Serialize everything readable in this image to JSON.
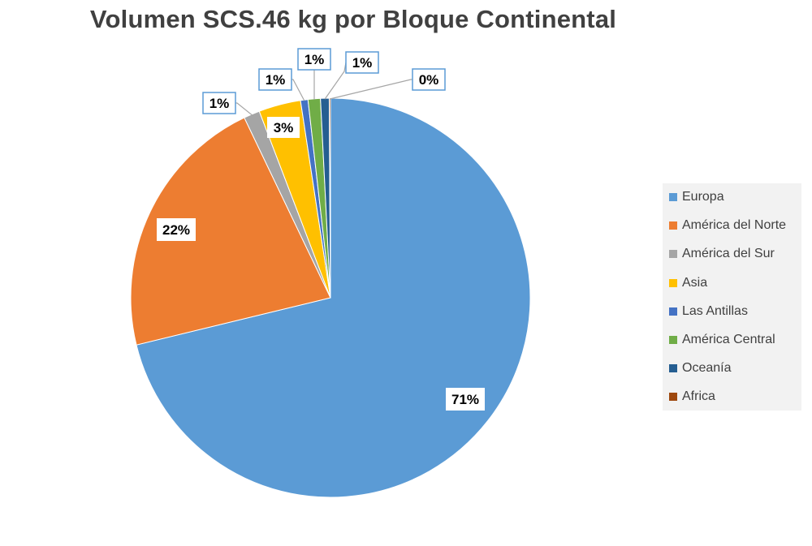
{
  "chart_data": {
    "type": "pie",
    "title": "Volumen SCS.46 kg por Bloque Continental",
    "legend_position": "right",
    "categories": [
      "Europa",
      "América del Norte",
      "América del Sur",
      "Asia",
      "Las Antillas",
      "América Central",
      "Oceanía",
      "Africa"
    ],
    "values": [
      71.2,
      21.7,
      1.3,
      3.4,
      0.6,
      1.0,
      0.7,
      0.1
    ],
    "labels": [
      "71%",
      "22%",
      "1%",
      "3%",
      "1%",
      "1%",
      "1%",
      "0%"
    ],
    "colors": [
      "#5b9bd5",
      "#ed7d31",
      "#a5a5a5",
      "#ffc000",
      "#4472c4",
      "#70ad47",
      "#255e91",
      "#9e480e"
    ]
  }
}
